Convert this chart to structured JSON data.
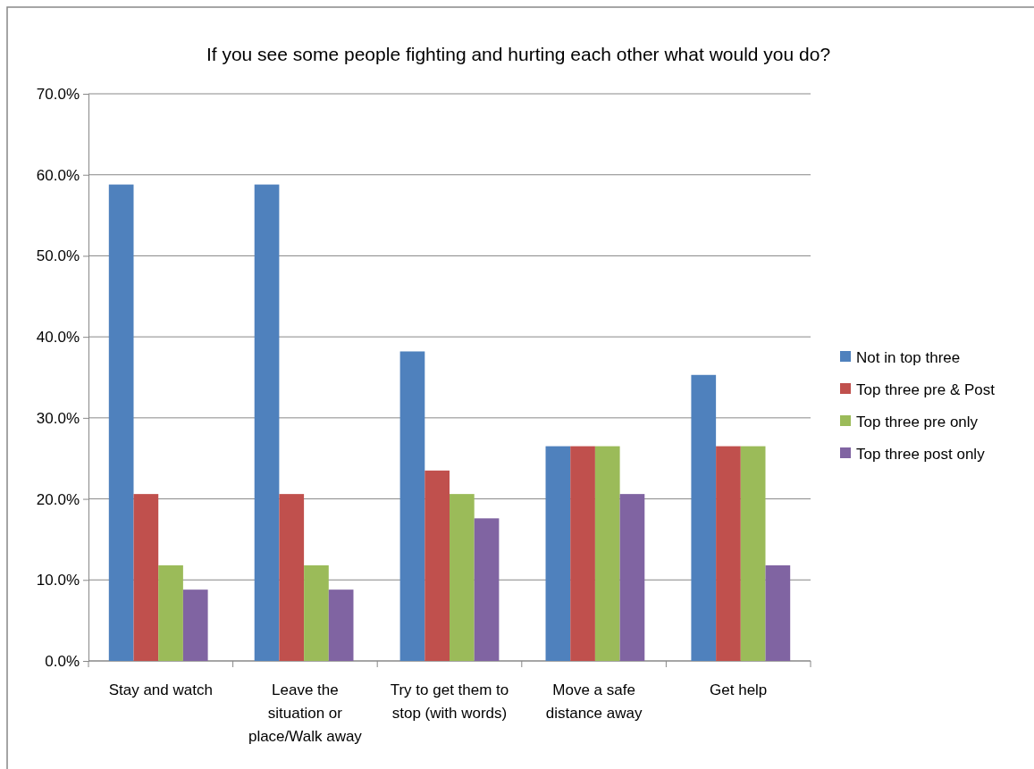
{
  "chart_data": {
    "type": "bar",
    "title": "If you see some people fighting and hurting each other what would you do?",
    "categories": [
      "Stay and watch",
      "Leave the situation or place/Walk away",
      "Try to get them to stop (with words)",
      "Move a safe distance away",
      "Get help"
    ],
    "series": [
      {
        "name": "Not in top three",
        "color": "#4f81bd",
        "values": [
          58.8,
          58.8,
          38.2,
          26.5,
          35.3
        ]
      },
      {
        "name": "Top three pre & Post",
        "color": "#c0504d",
        "values": [
          20.6,
          20.6,
          23.5,
          26.5,
          26.5
        ]
      },
      {
        "name": "Top three pre only",
        "color": "#9bbb59",
        "values": [
          11.8,
          11.8,
          20.6,
          26.5,
          26.5
        ]
      },
      {
        "name": "Top three post only",
        "color": "#8064a2",
        "values": [
          8.8,
          8.8,
          17.6,
          20.6,
          11.8
        ]
      }
    ],
    "ylim": [
      0,
      70
    ],
    "yticks": [
      {
        "value": 0,
        "label": "0.0%"
      },
      {
        "value": 10,
        "label": "10.0%"
      },
      {
        "value": 20,
        "label": "20.0%"
      },
      {
        "value": 30,
        "label": "30.0%"
      },
      {
        "value": 40,
        "label": "40.0%"
      },
      {
        "value": 50,
        "label": "50.0%"
      },
      {
        "value": 60,
        "label": "60.0%"
      },
      {
        "value": 70,
        "label": "70.0%"
      }
    ],
    "grid": "y",
    "legend": "right"
  }
}
